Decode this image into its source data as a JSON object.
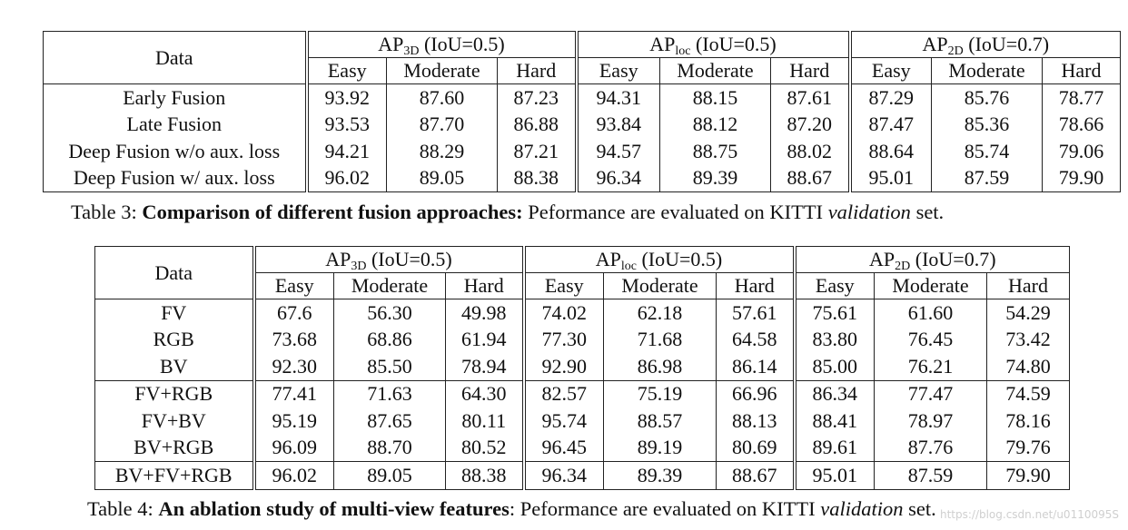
{
  "table3": {
    "data_header": "Data",
    "groups": [
      {
        "label": "AP",
        "sub": "3D",
        "suffix": " (IoU=0.5)"
      },
      {
        "label": "AP",
        "sub": "loc",
        "suffix": " (IoU=0.5)"
      },
      {
        "label": "AP",
        "sub": "2D",
        "suffix": " (IoU=0.7)"
      }
    ],
    "subcols": [
      "Easy",
      "Moderate",
      "Hard",
      "Easy",
      "Moderate",
      "Hard",
      "Easy",
      "Moderate",
      "Hard"
    ],
    "rows": [
      {
        "name": "Early Fusion",
        "values": [
          "93.92",
          "87.60",
          "87.23",
          "94.31",
          "88.15",
          "87.61",
          "87.29",
          "85.76",
          "78.77"
        ],
        "bold": []
      },
      {
        "name": "Late Fusion",
        "values": [
          "93.53",
          "87.70",
          "86.88",
          "93.84",
          "88.12",
          "87.20",
          "87.47",
          "85.36",
          "78.66"
        ],
        "bold": []
      },
      {
        "name": "Deep Fusion w/o aux. loss",
        "values": [
          "94.21",
          "88.29",
          "87.21",
          "94.57",
          "88.75",
          "88.02",
          "88.64",
          "85.74",
          "79.06"
        ],
        "bold": []
      },
      {
        "name": "Deep Fusion w/ aux. loss",
        "values": [
          "96.02",
          "89.05",
          "88.38",
          "96.34",
          "89.39",
          "88.67",
          "95.01",
          "87.59",
          "79.90"
        ],
        "bold": [
          0,
          1,
          2,
          3,
          4,
          5,
          6,
          7,
          8
        ]
      }
    ],
    "caption": {
      "prefix": "Table 3: ",
      "bold": "Comparison of different fusion approaches:",
      "middle": " Peformance are evaluated on KITTI ",
      "italic": "validation",
      "suffix": " set."
    }
  },
  "table4": {
    "data_header": "Data",
    "groups": [
      {
        "label": "AP",
        "sub": "3D",
        "suffix": " (IoU=0.5)"
      },
      {
        "label": "AP",
        "sub": "loc",
        "suffix": " (IoU=0.5)"
      },
      {
        "label": "AP",
        "sub": "2D",
        "suffix": " (IoU=0.7)"
      }
    ],
    "subcols": [
      "Easy",
      "Moderate",
      "Hard",
      "Easy",
      "Moderate",
      "Hard",
      "Easy",
      "Moderate",
      "Hard"
    ],
    "rows": [
      {
        "name": "FV",
        "values": [
          "67.6",
          "56.30",
          "49.98",
          "74.02",
          "62.18",
          "57.61",
          "75.61",
          "61.60",
          "54.29"
        ],
        "bold": []
      },
      {
        "name": "RGB",
        "values": [
          "73.68",
          "68.86",
          "61.94",
          "77.30",
          "71.68",
          "64.58",
          "83.80",
          "76.45",
          "73.42"
        ],
        "bold": []
      },
      {
        "name": "BV",
        "values": [
          "92.30",
          "85.50",
          "78.94",
          "92.90",
          "86.98",
          "86.14",
          "85.00",
          "76.21",
          "74.80"
        ],
        "bold": []
      },
      {
        "name": "FV+RGB",
        "values": [
          "77.41",
          "71.63",
          "64.30",
          "82.57",
          "75.19",
          "66.96",
          "86.34",
          "77.47",
          "74.59"
        ],
        "bold": [],
        "group_start": true
      },
      {
        "name": "FV+BV",
        "values": [
          "95.19",
          "87.65",
          "80.11",
          "95.74",
          "88.57",
          "88.13",
          "88.41",
          "78.97",
          "78.16"
        ],
        "bold": []
      },
      {
        "name": "BV+RGB",
        "values": [
          "96.09",
          "88.70",
          "80.52",
          "96.45",
          "89.19",
          "80.69",
          "89.61",
          "87.76",
          "79.76"
        ],
        "bold": [
          0,
          3,
          7
        ]
      },
      {
        "name": "BV+FV+RGB",
        "values": [
          "96.02",
          "89.05",
          "88.38",
          "96.34",
          "89.39",
          "88.67",
          "95.01",
          "87.59",
          "79.90"
        ],
        "bold": [
          1,
          2,
          4,
          5,
          6,
          8
        ],
        "group_start": true
      }
    ],
    "caption": {
      "prefix": "Table 4: ",
      "bold": "An ablation study of multi-view features",
      "middle": ": Peformance are evaluated on KITTI ",
      "italic": "validation",
      "suffix": " set."
    }
  },
  "watermark": "https://blog.csdn.net/u0110095S"
}
